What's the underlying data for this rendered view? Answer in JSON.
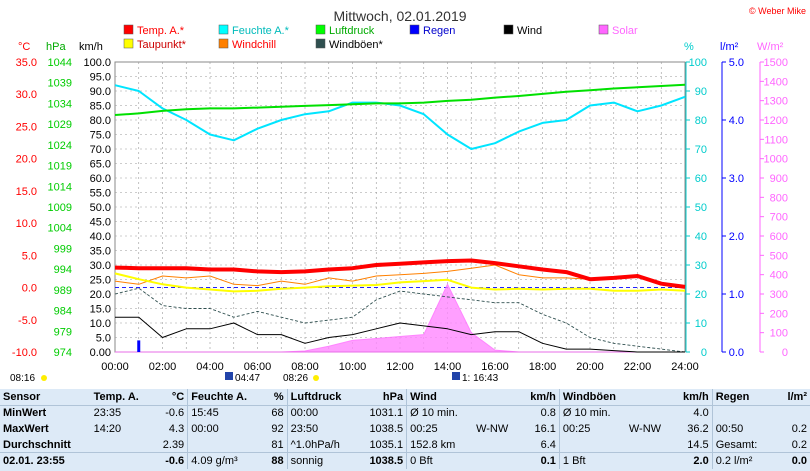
{
  "chart_data": {
    "type": "line",
    "title": "Mittwoch, 02.01.2019",
    "copyright": "© Weber Mike",
    "legend": [
      {
        "name": "Temp. A.*",
        "color": "#ff0000"
      },
      {
        "name": "Feuchte A.*",
        "color": "#00ffff"
      },
      {
        "name": "Luftdruck",
        "color": "#00ff00"
      },
      {
        "name": "Regen",
        "color": "#0000ff"
      },
      {
        "name": "Wind",
        "color": "#000000"
      },
      {
        "name": "Solar",
        "color": "#ff66ff"
      },
      {
        "name": "Taupunkt*",
        "color": "#ffff00"
      },
      {
        "name": "Windchill",
        "color": "#ff8000"
      },
      {
        "name": "Windböen*",
        "color": "#2f4f4f"
      }
    ],
    "axis_units": {
      "temp": "°C",
      "pressure": "hPa",
      "wind": "km/h",
      "humidity": "%",
      "rain": "l/m²",
      "solar": "W/m²"
    },
    "axes": {
      "temp": {
        "ticks": [
          "35.0",
          "30.0",
          "25.0",
          "20.0",
          "15.0",
          "10.0",
          "5.0",
          "0.0",
          "-5.0",
          "-10.0"
        ],
        "color": "#ff0000"
      },
      "pressure": {
        "ticks": [
          "1044",
          "1039",
          "1034",
          "1029",
          "1024",
          "1019",
          "1014",
          "1009",
          "1004",
          "999",
          "994",
          "989",
          "984",
          "979",
          "974"
        ],
        "color": "#00cc00"
      },
      "wind": {
        "ticks": [
          "100.0",
          "95.0",
          "90.0",
          "85.0",
          "80.0",
          "75.0",
          "70.0",
          "65.0",
          "60.0",
          "55.0",
          "50.0",
          "45.0",
          "40.0",
          "35.0",
          "30.0",
          "25.0",
          "20.0",
          "15.0",
          "10.0",
          "5.0",
          "0.00"
        ],
        "color": "#000000"
      },
      "humidity": {
        "ticks": [
          "100",
          "90",
          "80",
          "70",
          "60",
          "50",
          "40",
          "30",
          "20",
          "10",
          "0"
        ],
        "color": "#00cccc"
      },
      "rain": {
        "ticks": [
          "5.0",
          "4.0",
          "3.0",
          "2.0",
          "1.0",
          "0.0"
        ],
        "color": "#0000ff"
      },
      "solar": {
        "ticks": [
          "1500",
          "1400",
          "1300",
          "1200",
          "1100",
          "1000",
          "900",
          "800",
          "700",
          "600",
          "500",
          "400",
          "300",
          "200",
          "100",
          "0"
        ],
        "color": "#ff66ff"
      },
      "time": {
        "ticks": [
          "00:00",
          "02:00",
          "04:00",
          "06:00",
          "08:00",
          "10:00",
          "12:00",
          "14:00",
          "16:00",
          "18:00",
          "20:00",
          "22:00",
          "24:00"
        ]
      }
    },
    "x_hours": [
      0,
      1,
      2,
      3,
      4,
      5,
      6,
      7,
      8,
      9,
      10,
      11,
      12,
      13,
      14,
      15,
      16,
      17,
      18,
      19,
      20,
      21,
      22,
      23,
      24
    ],
    "series": [
      {
        "name": "Temp. A.*",
        "values": [
          3.1,
          3.0,
          3.0,
          3.0,
          2.8,
          2.8,
          2.5,
          2.4,
          2.5,
          2.8,
          3.0,
          3.5,
          3.7,
          3.9,
          4.1,
          4.2,
          3.8,
          3.3,
          2.8,
          2.4,
          1.3,
          1.5,
          1.8,
          0.6,
          0.1
        ]
      },
      {
        "name": "Taupunkt*",
        "values": [
          2.2,
          1.3,
          0.5,
          0.0,
          -0.3,
          -0.6,
          -0.5,
          -0.2,
          0.0,
          0.2,
          0.3,
          0.4,
          0.8,
          1.0,
          1.2,
          0.0,
          -0.3,
          -0.2,
          -0.3,
          -0.2,
          -0.2,
          -0.5,
          -0.5,
          -0.3,
          -0.5
        ]
      },
      {
        "name": "Windchill",
        "values": [
          1.0,
          0.5,
          1.8,
          1.5,
          1.8,
          0.5,
          0.3,
          1.0,
          0.5,
          1.5,
          1.0,
          1.8,
          2.0,
          2.2,
          2.5,
          3.0,
          3.5,
          2.0,
          1.5,
          1.5,
          1.3,
          1.5,
          1.8,
          0.6,
          0.1
        ]
      },
      {
        "name": "Feuchte A.*",
        "values": [
          92,
          90,
          84,
          80,
          75,
          73,
          77,
          80,
          82,
          83,
          86,
          86,
          85,
          82,
          75,
          70,
          72,
          76,
          79,
          80,
          85,
          86,
          83,
          85,
          88
        ]
      },
      {
        "name": "Luftdruck",
        "values": [
          1031.2,
          1031.6,
          1032.2,
          1032.6,
          1032.8,
          1032.8,
          1033.0,
          1033.2,
          1033.4,
          1033.6,
          1033.8,
          1034.0,
          1034.0,
          1034.2,
          1034.6,
          1034.9,
          1035.4,
          1035.8,
          1036.3,
          1036.8,
          1037.2,
          1037.6,
          1037.9,
          1038.2,
          1038.5
        ]
      },
      {
        "name": "Wind",
        "values": [
          12,
          12,
          5,
          8,
          8,
          10,
          6,
          6,
          3,
          5,
          6,
          8,
          10,
          9,
          8,
          6,
          7,
          7,
          3,
          1,
          1,
          0.5,
          0,
          0,
          0
        ]
      },
      {
        "name": "Windböen*",
        "values": [
          20,
          22,
          16,
          15,
          15,
          12,
          14,
          12,
          10,
          11,
          12,
          18,
          21,
          20,
          19,
          18,
          17,
          17,
          13,
          10,
          5,
          3,
          2,
          1,
          0
        ]
      },
      {
        "name": "Solar",
        "values": [
          0,
          0,
          0,
          0,
          0,
          0,
          0,
          0,
          5,
          30,
          60,
          70,
          80,
          90,
          350,
          100,
          10,
          0,
          0,
          0,
          0,
          0,
          0,
          0,
          0
        ]
      },
      {
        "name": "Regen",
        "values": [
          0,
          0.2,
          0,
          0,
          0,
          0,
          0,
          0,
          0,
          0,
          0,
          0,
          0,
          0,
          0,
          0,
          0,
          0,
          0,
          0,
          0,
          0,
          0,
          0,
          0
        ]
      }
    ],
    "sun": {
      "sunrise": "08:16",
      "sunset": "16:43",
      "moonrise": "04:47",
      "moonset": "08:26",
      "moon_set_label": "1: 16:43"
    }
  },
  "table": {
    "headers": [
      "Sensor",
      "Temp. A.",
      "°C",
      "Feuchte A.",
      "%",
      "Luftdruck",
      "hPa",
      "Wind",
      "km/h",
      "Windböen",
      "km/h",
      "Regen",
      "l/m²"
    ],
    "rows": [
      {
        "label": "MinWert",
        "cells": [
          "23:35",
          "-0.6",
          "15:45",
          "68",
          "00:00",
          "1031.1",
          "Ø 10 min.",
          "",
          "0.8",
          "Ø 10 min.",
          "",
          "4.0",
          "",
          "",
          ""
        ]
      },
      {
        "label": "MaxWert",
        "cells": [
          "14:20",
          "4.3",
          "00:00",
          "92",
          "23:50",
          "1038.5",
          "00:25",
          "W-NW",
          "16.1",
          "00:25",
          "W-NW",
          "36.2",
          "00:50",
          "",
          "0.2"
        ]
      },
      {
        "label": "Durchschnitt",
        "cells": [
          "",
          "2.39",
          "",
          "81",
          "^1.0hPa/h",
          "1035.1",
          "152.8 km",
          "",
          "6.4",
          "",
          "",
          "14.5",
          "Gesamt:",
          "",
          "0.2"
        ]
      },
      {
        "label": "02.01. 23:55",
        "cells": [
          "",
          "-0.6",
          "4.09 g/m³",
          "88",
          "sonnig",
          "1038.5",
          "0 Bft",
          "",
          "0.1",
          "1 Bft",
          "",
          "2.0",
          "0.2 l/m²",
          "",
          "0.0"
        ]
      }
    ]
  }
}
